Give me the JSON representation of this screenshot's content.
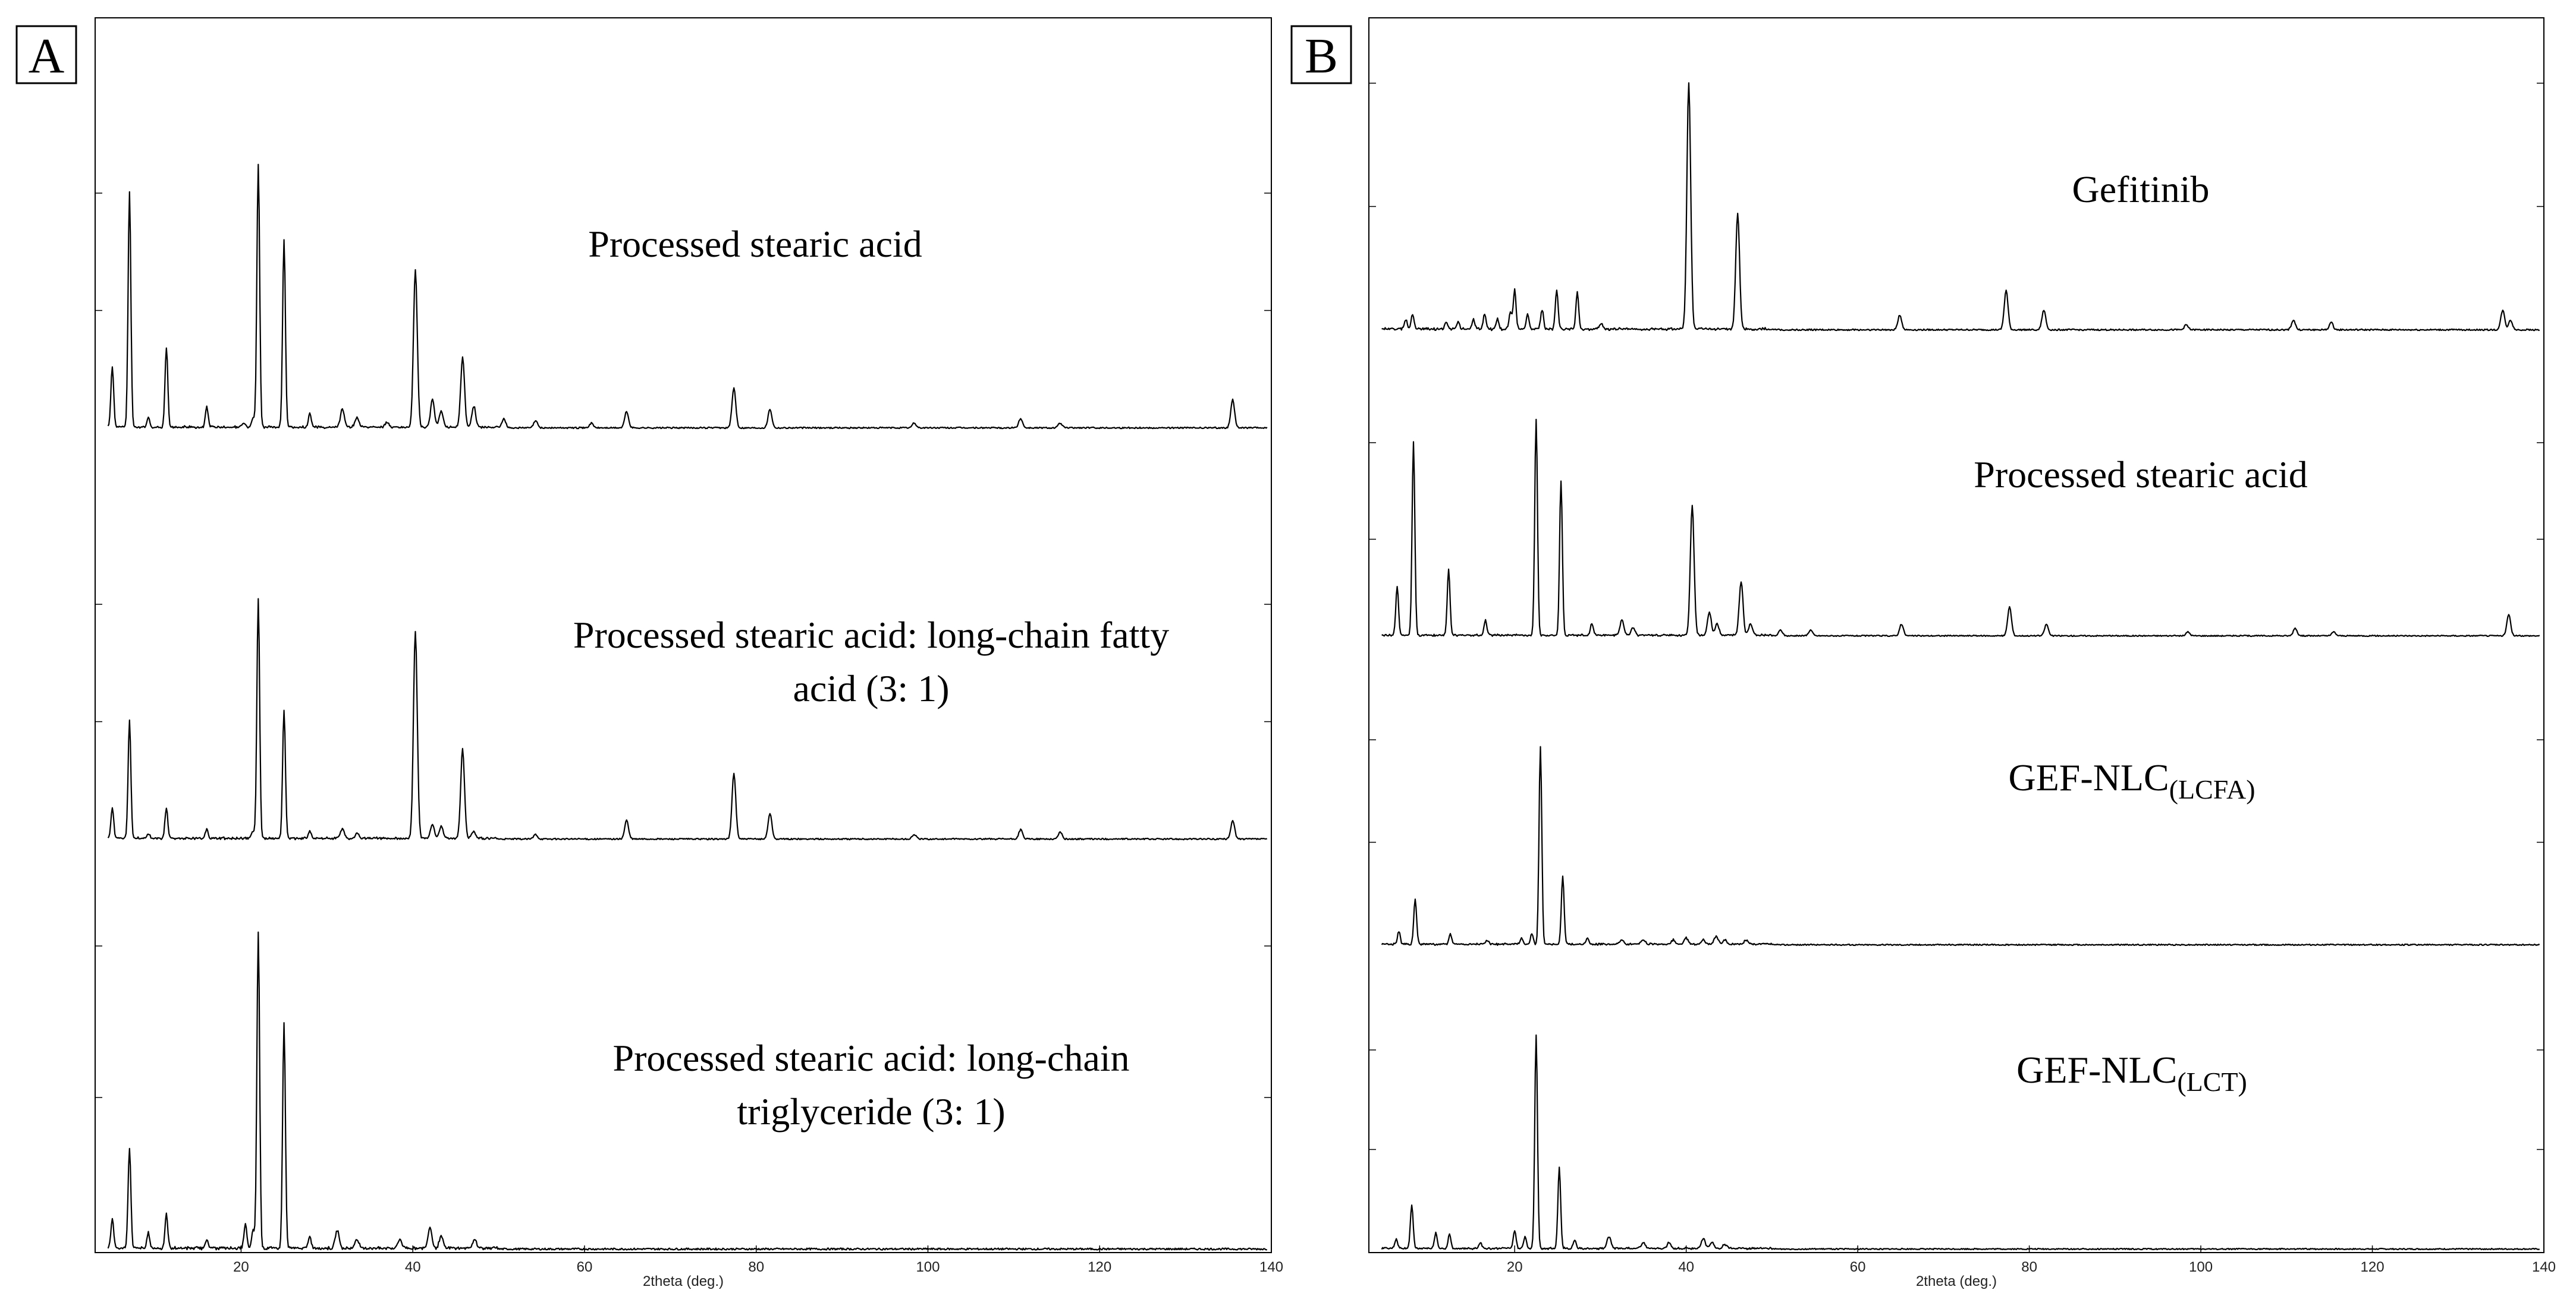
{
  "chart_data": [
    {
      "panel": "A",
      "type": "line",
      "xlabel": "2theta (deg.)",
      "xlim": [
        3,
        140
      ],
      "x_ticks": [
        20,
        40,
        60,
        80,
        100,
        120,
        140
      ],
      "series": [
        {
          "name": "Processed stearic acid",
          "label_lines": [
            "Processed stearic acid"
          ],
          "peaks": [
            [
              5.0,
              0.26
            ],
            [
              7.0,
              1.0
            ],
            [
              9.2,
              0.04
            ],
            [
              11.3,
              0.34
            ],
            [
              16.0,
              0.09
            ],
            [
              20.3,
              0.02
            ],
            [
              21.4,
              0.04
            ],
            [
              22.0,
              1.12
            ],
            [
              25.0,
              0.8
            ],
            [
              28.0,
              0.06
            ],
            [
              31.8,
              0.08
            ],
            [
              33.5,
              0.04
            ],
            [
              37.0,
              0.02
            ],
            [
              40.3,
              0.67
            ],
            [
              42.3,
              0.12
            ],
            [
              43.3,
              0.07
            ],
            [
              45.8,
              0.3
            ],
            [
              47.1,
              0.09
            ],
            [
              50.6,
              0.04
            ],
            [
              54.3,
              0.03
            ],
            [
              60.8,
              0.02
            ],
            [
              64.9,
              0.07
            ],
            [
              77.4,
              0.17
            ],
            [
              81.6,
              0.08
            ],
            [
              98.4,
              0.02
            ],
            [
              110.8,
              0.04
            ],
            [
              115.4,
              0.02
            ],
            [
              135.5,
              0.12
            ]
          ]
        },
        {
          "name": "Processed stearic acid: long-chain fatty acid (3: 1)",
          "label_lines": [
            "Processed stearic acid: long-chain fatty",
            "acid (3: 1)"
          ],
          "peaks": [
            [
              5.0,
              0.13
            ],
            [
              7.0,
              0.5
            ],
            [
              9.2,
              0.02
            ],
            [
              11.3,
              0.13
            ],
            [
              16.0,
              0.04
            ],
            [
              21.4,
              0.03
            ],
            [
              22.0,
              1.02
            ],
            [
              25.0,
              0.55
            ],
            [
              28.0,
              0.03
            ],
            [
              31.8,
              0.04
            ],
            [
              33.5,
              0.02
            ],
            [
              40.3,
              0.88
            ],
            [
              42.3,
              0.06
            ],
            [
              43.3,
              0.05
            ],
            [
              45.8,
              0.38
            ],
            [
              47.1,
              0.03
            ],
            [
              54.3,
              0.02
            ],
            [
              64.9,
              0.08
            ],
            [
              77.4,
              0.28
            ],
            [
              81.6,
              0.11
            ],
            [
              98.4,
              0.02
            ],
            [
              110.8,
              0.04
            ],
            [
              115.4,
              0.03
            ],
            [
              135.5,
              0.08
            ]
          ]
        },
        {
          "name": "Processed stearic acid: long-chain triglyceride (3: 1)",
          "label_lines": [
            "Processed stearic acid: long-chain",
            "triglyceride (3: 1)"
          ],
          "peaks": [
            [
              5.0,
              0.1
            ],
            [
              7.0,
              0.33
            ],
            [
              9.2,
              0.05
            ],
            [
              11.3,
              0.11
            ],
            [
              16.0,
              0.03
            ],
            [
              20.5,
              0.08
            ],
            [
              21.4,
              0.06
            ],
            [
              22.0,
              1.04
            ],
            [
              25.0,
              0.74
            ],
            [
              28.0,
              0.04
            ],
            [
              31.2,
              0.06
            ],
            [
              33.5,
              0.03
            ],
            [
              38.5,
              0.03
            ],
            [
              42.0,
              0.07
            ],
            [
              43.3,
              0.04
            ],
            [
              47.2,
              0.03
            ]
          ]
        }
      ]
    },
    {
      "panel": "B",
      "type": "line",
      "xlabel": "2theta (deg.)",
      "xlim": [
        3,
        140
      ],
      "x_ticks": [
        20,
        40,
        60,
        80,
        100,
        120,
        140
      ],
      "series": [
        {
          "name": "Gefitinib",
          "label_lines": [
            "Gefitinib"
          ],
          "peaks": [
            [
              7.3,
              0.04
            ],
            [
              8.1,
              0.06
            ],
            [
              12.0,
              0.03
            ],
            [
              13.4,
              0.03
            ],
            [
              15.2,
              0.04
            ],
            [
              16.5,
              0.06
            ],
            [
              18.0,
              0.04
            ],
            [
              19.5,
              0.07
            ],
            [
              20.0,
              0.16
            ],
            [
              21.5,
              0.06
            ],
            [
              23.2,
              0.08
            ],
            [
              24.9,
              0.16
            ],
            [
              27.3,
              0.15
            ],
            [
              30.1,
              0.02
            ],
            [
              40.3,
              1.0
            ],
            [
              46.0,
              0.47
            ],
            [
              64.9,
              0.06
            ],
            [
              77.3,
              0.16
            ],
            [
              81.7,
              0.08
            ],
            [
              98.3,
              0.02
            ],
            [
              110.8,
              0.04
            ],
            [
              115.2,
              0.03
            ],
            [
              135.2,
              0.08
            ],
            [
              136.1,
              0.04
            ]
          ]
        },
        {
          "name": "Processed stearic acid",
          "label_lines": [
            "Processed stearic acid"
          ],
          "peaks": [
            [
              6.3,
              0.25
            ],
            [
              8.2,
              1.0
            ],
            [
              12.3,
              0.34
            ],
            [
              16.6,
              0.08
            ],
            [
              22.5,
              1.12
            ],
            [
              25.4,
              0.8
            ],
            [
              29.0,
              0.06
            ],
            [
              32.5,
              0.08
            ],
            [
              33.8,
              0.04
            ],
            [
              40.7,
              0.67
            ],
            [
              42.7,
              0.12
            ],
            [
              43.6,
              0.06
            ],
            [
              46.4,
              0.28
            ],
            [
              47.5,
              0.06
            ],
            [
              51.0,
              0.03
            ],
            [
              54.5,
              0.03
            ],
            [
              65.1,
              0.06
            ],
            [
              77.7,
              0.15
            ],
            [
              82.0,
              0.06
            ],
            [
              98.5,
              0.02
            ],
            [
              111.0,
              0.04
            ],
            [
              115.5,
              0.02
            ],
            [
              135.9,
              0.11
            ]
          ]
        },
        {
          "name": "GEF-NLC(LCFA)",
          "label_lines": [
            "GEF-NLC"
          ],
          "label_sub": "(LCFA)",
          "peaks": [
            [
              6.5,
              0.06
            ],
            [
              8.4,
              0.22
            ],
            [
              12.5,
              0.05
            ],
            [
              16.8,
              0.02
            ],
            [
              20.8,
              0.03
            ],
            [
              22.0,
              0.05
            ],
            [
              23.0,
              0.96
            ],
            [
              25.6,
              0.33
            ],
            [
              28.5,
              0.03
            ],
            [
              32.5,
              0.02
            ],
            [
              35.0,
              0.02
            ],
            [
              38.5,
              0.02
            ],
            [
              40.0,
              0.03
            ],
            [
              42.0,
              0.02
            ],
            [
              43.5,
              0.04
            ],
            [
              44.5,
              0.02
            ],
            [
              47.0,
              0.02
            ]
          ]
        },
        {
          "name": "GEF-NLC(LCT)",
          "label_lines": [
            "GEF-NLC"
          ],
          "label_sub": "(LCT)",
          "peaks": [
            [
              6.2,
              0.05
            ],
            [
              8.0,
              0.22
            ],
            [
              10.8,
              0.08
            ],
            [
              12.4,
              0.07
            ],
            [
              16.0,
              0.03
            ],
            [
              20.0,
              0.09
            ],
            [
              21.2,
              0.06
            ],
            [
              22.5,
              1.07
            ],
            [
              25.2,
              0.41
            ],
            [
              27.0,
              0.04
            ],
            [
              31.0,
              0.06
            ],
            [
              35.0,
              0.03
            ],
            [
              38.0,
              0.03
            ],
            [
              42.0,
              0.05
            ],
            [
              43.0,
              0.03
            ],
            [
              44.5,
              0.02
            ]
          ]
        }
      ]
    }
  ]
}
